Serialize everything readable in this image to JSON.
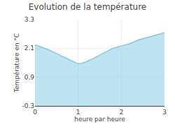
{
  "chart_data": {
    "type": "area",
    "title": "Evolution de la température",
    "x_label": "heure par heure",
    "y_label": "Température en °C",
    "x": [
      0,
      0.15,
      0.3,
      0.5,
      0.7,
      0.85,
      1.0,
      1.1,
      1.2,
      1.35,
      1.5,
      1.65,
      1.8,
      2.0,
      2.2,
      2.4,
      2.6,
      2.8,
      3.0
    ],
    "values": [
      2.25,
      2.15,
      2.05,
      1.88,
      1.7,
      1.58,
      1.45,
      1.48,
      1.55,
      1.68,
      1.82,
      1.98,
      2.1,
      2.2,
      2.3,
      2.45,
      2.55,
      2.65,
      2.75
    ],
    "color": "#7ec8e3",
    "xlim": [
      0,
      3
    ],
    "ylim": [
      -0.3,
      3.3
    ],
    "xticks": [
      0,
      1,
      2,
      3
    ],
    "yticks": [
      -0.3,
      0.9,
      2.1,
      3.3
    ],
    "grid": true
  }
}
